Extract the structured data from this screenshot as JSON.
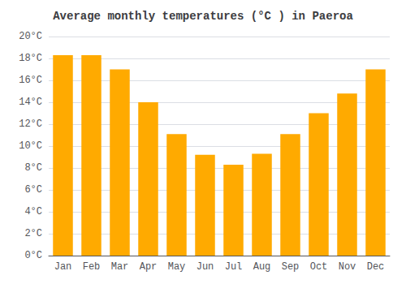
{
  "chart_data": {
    "type": "bar",
    "title": "Average monthly temperatures (°C ) in Paeroa",
    "categories": [
      "Jan",
      "Feb",
      "Mar",
      "Apr",
      "May",
      "Jun",
      "Jul",
      "Aug",
      "Sep",
      "Oct",
      "Nov",
      "Dec"
    ],
    "values": [
      18.3,
      18.3,
      17.0,
      14.0,
      11.1,
      9.2,
      8.3,
      9.3,
      11.1,
      13.0,
      14.8,
      17.0
    ],
    "color": "#FFAA00",
    "ylim": [
      0,
      20
    ],
    "yticks": [
      {
        "value": 0,
        "label": "0°C"
      },
      {
        "value": 2,
        "label": "2°C"
      },
      {
        "value": 4,
        "label": "4°C"
      },
      {
        "value": 6,
        "label": "6°C"
      },
      {
        "value": 8,
        "label": "8°C"
      },
      {
        "value": 10,
        "label": "10°C"
      },
      {
        "value": 12,
        "label": "12°C"
      },
      {
        "value": 14,
        "label": "14°C"
      },
      {
        "value": 16,
        "label": "16°C"
      },
      {
        "value": 18,
        "label": "18°C"
      },
      {
        "value": 20,
        "label": "20°C"
      }
    ],
    "grid": true
  }
}
